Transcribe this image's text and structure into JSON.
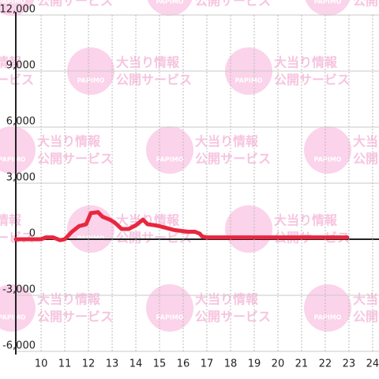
{
  "chart_data": {
    "type": "line",
    "x": [
      8.93,
      10.0,
      10.2,
      10.5,
      10.8,
      11.0,
      11.3,
      11.6,
      11.9,
      12.1,
      12.4,
      12.6,
      12.9,
      13.1,
      13.4,
      13.7,
      14.0,
      14.3,
      14.5,
      14.8,
      15.0,
      15.3,
      15.6,
      15.9,
      16.2,
      16.5,
      16.7,
      16.8,
      17.0,
      17.5,
      18.0,
      19.0,
      20.0,
      21.0,
      22.0,
      22.93
    ],
    "series": [
      {
        "color": "#e8273f",
        "values": [
          0,
          0,
          100,
          100,
          -50,
          0,
          400,
          700,
          800,
          1400,
          1450,
          1200,
          1050,
          900,
          550,
          550,
          750,
          1050,
          800,
          750,
          700,
          600,
          500,
          450,
          400,
          400,
          300,
          150,
          100,
          100,
          100,
          100,
          100,
          100,
          100,
          100
        ]
      }
    ],
    "xlim": [
      8.93,
      24.27
    ],
    "xticks": [
      10,
      11,
      12,
      13,
      14,
      15,
      16,
      17,
      18,
      19,
      20,
      21,
      22,
      23,
      24
    ],
    "ylim": [
      -6000,
      12000
    ],
    "yticks": [
      {
        "value": -6000,
        "label": "-6,000"
      },
      {
        "value": -3000,
        "label": "-3,000"
      },
      0,
      {
        "value": 3000,
        "label": "3,000"
      },
      {
        "value": 6000,
        "label": "6,000"
      },
      {
        "value": 9000,
        "label": "9,000"
      },
      {
        "value": 12000,
        "label": "12,000"
      }
    ],
    "grid": true
  },
  "watermark": {
    "brand": "PAPIMO",
    "line1": "大当り情報",
    "line2": "公開サービス"
  }
}
